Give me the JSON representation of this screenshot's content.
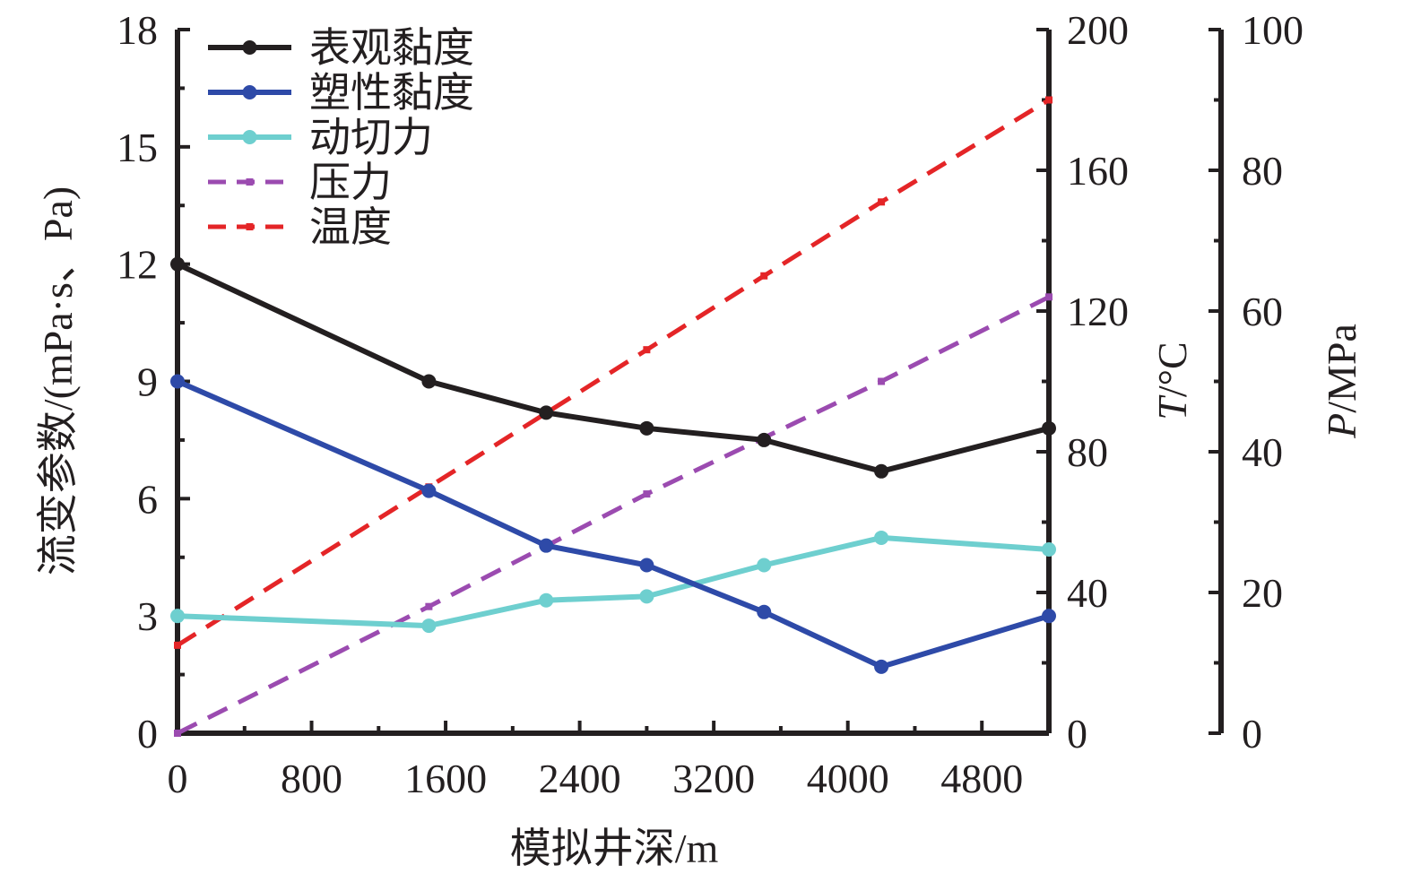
{
  "chart_data": {
    "type": "line",
    "xlabel": "模拟井深/m",
    "x_ticks": [
      "0",
      "800",
      "1600",
      "2400",
      "3200",
      "4000",
      "4800"
    ],
    "xlim": [
      0,
      5200
    ],
    "ylabel_left": "流变参数/(mPa·s、Pa)",
    "left_ticks": [
      "0",
      "3",
      "6",
      "9",
      "12",
      "15",
      "18"
    ],
    "ylim_left": [
      0,
      18
    ],
    "ylabel_right1_italic": "T",
    "ylabel_right1_rest": "/°C",
    "right1_ticks": [
      "0",
      "40",
      "80",
      "120",
      "160",
      "200"
    ],
    "ylim_right1": [
      0,
      200
    ],
    "ylabel_right2_italic": "P",
    "ylabel_right2_rest": "/MPa",
    "right2_ticks": [
      "0",
      "20",
      "40",
      "60",
      "80",
      "100"
    ],
    "ylim_right2": [
      0,
      100
    ],
    "legend_position": "top-left",
    "series": [
      {
        "name": "表观黏度",
        "axis": "left",
        "color": "#231f20",
        "dash": "solid",
        "marker": "circle",
        "x": [
          0,
          1500,
          2200,
          2800,
          3500,
          4200,
          5200
        ],
        "values": [
          12.0,
          9.0,
          8.2,
          7.8,
          7.5,
          6.7,
          7.8
        ]
      },
      {
        "name": "塑性黏度",
        "axis": "left",
        "color": "#2e4aa8",
        "dash": "solid",
        "marker": "circle",
        "x": [
          0,
          1500,
          2200,
          2800,
          3500,
          4200,
          5200
        ],
        "values": [
          9.0,
          6.2,
          4.8,
          4.3,
          3.1,
          1.7,
          3.0
        ]
      },
      {
        "name": "动切力",
        "axis": "left",
        "color": "#6ecfcf",
        "dash": "solid",
        "marker": "circle",
        "x": [
          0,
          1500,
          2200,
          2800,
          3500,
          4200,
          5200
        ],
        "values": [
          3.0,
          2.75,
          3.4,
          3.5,
          4.3,
          5.0,
          4.7
        ]
      },
      {
        "name": "压力",
        "axis": "right2",
        "color": "#9b4bb0",
        "dash": "dashed",
        "marker": "square",
        "x": [
          0,
          1500,
          2800,
          4200,
          5200
        ],
        "values": [
          0,
          18,
          34,
          50,
          62
        ]
      },
      {
        "name": "温度",
        "axis": "right1",
        "color": "#e42527",
        "dash": "dashed",
        "marker": "square",
        "x": [
          0,
          1500,
          2200,
          2800,
          3500,
          4200,
          5200
        ],
        "values": [
          25,
          70,
          91,
          109,
          130,
          151,
          180
        ]
      }
    ]
  }
}
